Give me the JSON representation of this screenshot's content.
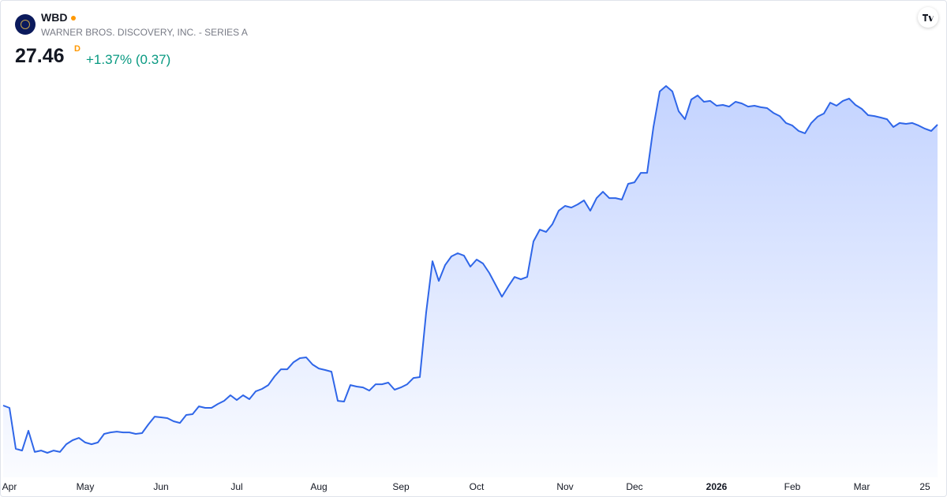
{
  "header": {
    "symbol": "WBD",
    "name": "WARNER BROS. DISCOVERY, INC. - SERIES A",
    "price": "27.46",
    "interval": "D",
    "change": "+1.37% (0.37)"
  },
  "chart_data": {
    "type": "area",
    "color": "#2f66e8",
    "categories": [
      null,
      "Apr",
      null,
      null,
      null,
      null,
      null,
      null,
      null,
      null,
      null,
      null,
      null,
      "May",
      null,
      null,
      null,
      null,
      null,
      null,
      null,
      null,
      null,
      null,
      null,
      "Jun",
      null,
      null,
      null,
      null,
      null,
      null,
      null,
      null,
      null,
      null,
      null,
      "Jul",
      null,
      null,
      null,
      null,
      null,
      null,
      null,
      null,
      null,
      null,
      null,
      null,
      "Aug",
      null,
      null,
      null,
      null,
      null,
      null,
      null,
      null,
      null,
      null,
      null,
      null,
      "Sep",
      null,
      null,
      null,
      null,
      null,
      null,
      null,
      null,
      null,
      null,
      null,
      "Oct",
      null,
      null,
      null,
      null,
      null,
      null,
      null,
      null,
      null,
      null,
      null,
      null,
      null,
      "Nov",
      null,
      null,
      null,
      null,
      null,
      null,
      null,
      null,
      null,
      null,
      "Dec",
      null,
      null,
      null,
      null,
      null,
      null,
      null,
      null,
      null,
      null,
      null,
      null,
      "2026",
      null,
      null,
      null,
      null,
      null,
      null,
      null,
      null,
      null,
      null,
      null,
      "Feb",
      null,
      null,
      null,
      null,
      null,
      null,
      null,
      null,
      null,
      null,
      "Mar",
      null,
      null,
      null,
      null,
      null,
      null,
      null,
      null,
      null,
      "25",
      null,
      null
    ],
    "values": [
      10.55,
      10.41,
      7.94,
      7.84,
      9.03,
      7.75,
      7.84,
      7.7,
      7.84,
      7.75,
      8.22,
      8.46,
      8.6,
      8.32,
      8.22,
      8.32,
      8.84,
      8.93,
      8.98,
      8.93,
      8.93,
      8.84,
      8.89,
      9.41,
      9.88,
      9.84,
      9.79,
      9.6,
      9.5,
      9.98,
      10.03,
      10.5,
      10.41,
      10.41,
      10.64,
      10.83,
      11.17,
      10.88,
      11.17,
      10.93,
      11.4,
      11.55,
      11.78,
      12.31,
      12.73,
      12.73,
      13.16,
      13.4,
      13.45,
      13.02,
      12.78,
      12.69,
      12.59,
      10.83,
      10.79,
      11.78,
      11.69,
      11.64,
      11.45,
      11.83,
      11.83,
      11.93,
      11.5,
      11.64,
      11.83,
      12.21,
      12.26,
      16.15,
      19.24,
      18.05,
      19.0,
      19.53,
      19.72,
      19.57,
      18.91,
      19.34,
      19.1,
      18.53,
      17.82,
      17.1,
      17.72,
      18.29,
      18.15,
      18.29,
      20.43,
      21.14,
      21.0,
      21.47,
      22.28,
      22.57,
      22.47,
      22.66,
      22.9,
      22.28,
      23.04,
      23.42,
      23.04,
      23.04,
      22.95,
      23.9,
      23.99,
      24.56,
      24.56,
      27.32,
      29.46,
      29.79,
      29.46,
      28.27,
      27.79,
      28.98,
      29.22,
      28.84,
      28.89,
      28.6,
      28.65,
      28.55,
      28.84,
      28.74,
      28.55,
      28.6,
      28.51,
      28.46,
      28.17,
      27.98,
      27.56,
      27.41,
      27.08,
      26.94,
      27.56,
      27.94,
      28.13,
      28.79,
      28.6,
      28.89,
      29.03,
      28.65,
      28.41,
      28.03,
      27.98,
      27.89,
      27.79,
      27.32,
      27.56,
      27.51,
      27.56,
      27.41,
      27.22,
      27.08,
      27.46
    ]
  }
}
